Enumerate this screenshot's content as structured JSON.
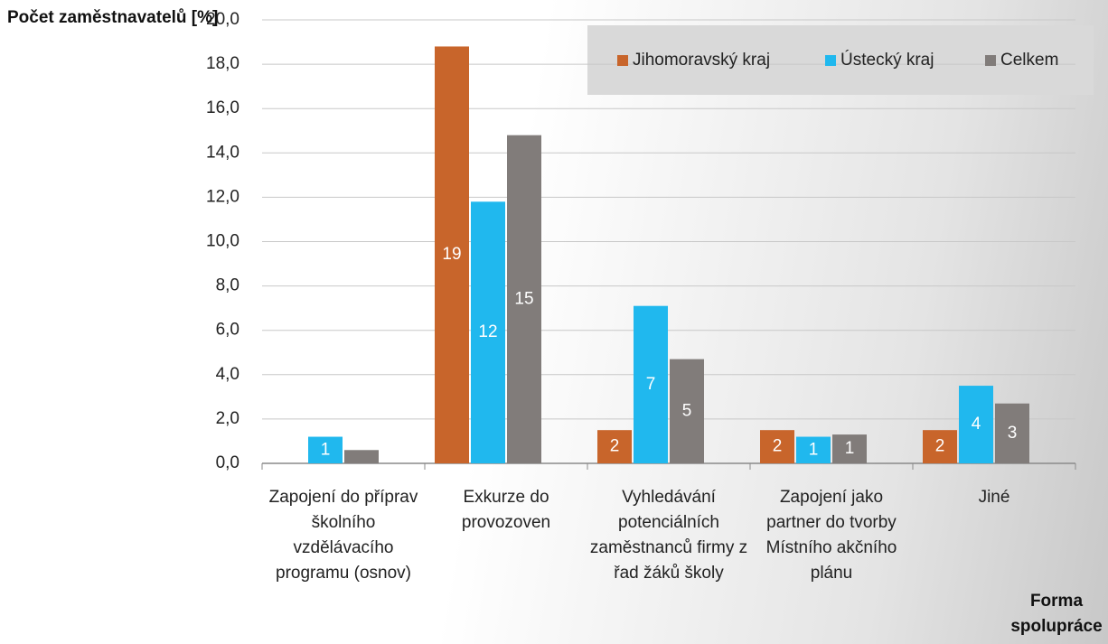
{
  "chart_data": {
    "type": "bar",
    "y_label": "Počet zaměstnavatelů [%]",
    "x_label": "Forma spolupráce",
    "categories": [
      "Zapojení do příprav školního vzdělávacího programu (osnov)",
      "Exkurze do provozoven",
      "Vyhledávání potenciálních zaměstnanců firmy z řad žáků školy",
      "Zapojení jako partner do tvorby Místního akčního plánu",
      "Jiné"
    ],
    "series": [
      {
        "name": "Jihomoravský kraj",
        "color": "#c8652b",
        "values": [
          null,
          18.8,
          1.5,
          1.5,
          1.5
        ],
        "value_labels": [
          null,
          "19",
          "2",
          "2",
          "2"
        ]
      },
      {
        "name": "Ústecký kraj",
        "color": "#20b8ee",
        "values": [
          1.2,
          11.8,
          7.1,
          1.2,
          3.5
        ],
        "value_labels": [
          "1",
          "12",
          "7",
          "1",
          "4"
        ]
      },
      {
        "name": "Celkem",
        "color": "#817c7a",
        "values": [
          0.6,
          14.8,
          4.7,
          1.3,
          2.7
        ],
        "value_labels": [
          null,
          "15",
          "5",
          "1",
          "3"
        ]
      }
    ],
    "ylim": [
      0,
      20
    ],
    "yticks": [
      {
        "value": 0,
        "label": "0,0"
      },
      {
        "value": 2,
        "label": "2,0"
      },
      {
        "value": 4,
        "label": "4,0"
      },
      {
        "value": 6,
        "label": "6,0"
      },
      {
        "value": 8,
        "label": "8,0"
      },
      {
        "value": 10,
        "label": "10,0"
      },
      {
        "value": 12,
        "label": "12,0"
      },
      {
        "value": 14,
        "label": "14,0"
      },
      {
        "value": 16,
        "label": "16,0"
      },
      {
        "value": 18,
        "label": "18,0"
      },
      {
        "value": 20,
        "label": "20,0"
      }
    ],
    "grid": true
  }
}
